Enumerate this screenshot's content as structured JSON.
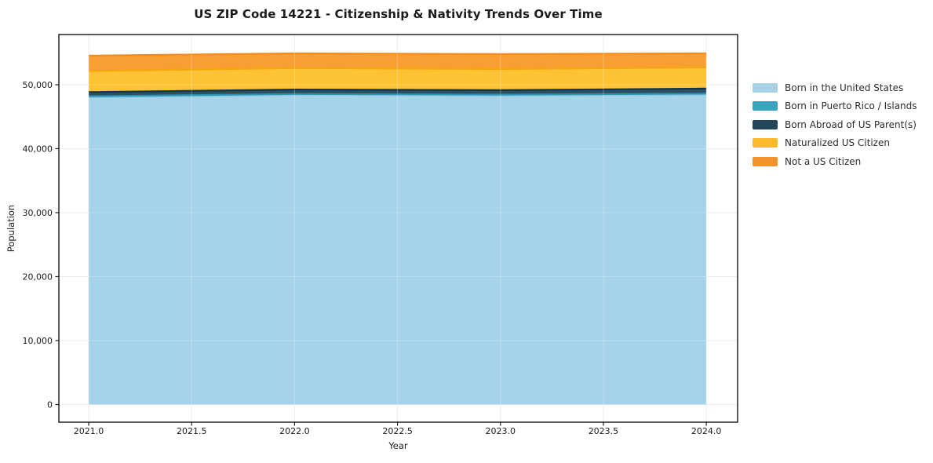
{
  "title": "US ZIP Code 14221 - Citizenship & Nativity Trends Over Time",
  "chart_data": {
    "type": "area",
    "stacked": true,
    "title": "US ZIP Code 14221 - Citizenship & Nativity Trends Over Time",
    "xlabel": "Year",
    "ylabel": "Population",
    "x": [
      2021,
      2022,
      2023,
      2024
    ],
    "series": [
      {
        "name": "Born in the United States",
        "color": "#A6D1E6",
        "fill": "#A5D4EA",
        "line": "#8FC9E3",
        "values": [
          48000,
          48400,
          48300,
          48400
        ]
      },
      {
        "name": "Born in Puerto Rico / Islands",
        "color": "#3BA3C0",
        "fill": "#45A9C6",
        "line": "#2B94B3",
        "values": [
          200,
          150,
          150,
          200
        ]
      },
      {
        "name": "Born Abroad of US Parent(s)",
        "color": "#24465A",
        "fill": "#2C4F63",
        "line": "#123649",
        "values": [
          650,
          700,
          700,
          800
        ]
      },
      {
        "name": "Naturalized US Citizen",
        "color": "#FBBA2D",
        "fill": "#FDC334",
        "line": "#F5A80D",
        "values": [
          3300,
          3350,
          3300,
          3300
        ]
      },
      {
        "name": "Not a US Citizen",
        "color": "#F6922B",
        "fill": "#F89E33",
        "line": "#F58B1D",
        "values": [
          2400,
          2300,
          2350,
          2200
        ]
      }
    ],
    "xticks": [
      {
        "v": 2021.0,
        "label": "2021.0"
      },
      {
        "v": 2021.5,
        "label": "2021.5"
      },
      {
        "v": 2022.0,
        "label": "2022.0"
      },
      {
        "v": 2022.5,
        "label": "2022.5"
      },
      {
        "v": 2023.0,
        "label": "2023.0"
      },
      {
        "v": 2023.5,
        "label": "2023.5"
      },
      {
        "v": 2024.0,
        "label": "2024.0"
      }
    ],
    "yticks": [
      {
        "v": 0,
        "label": "0"
      },
      {
        "v": 10000,
        "label": "10,000"
      },
      {
        "v": 20000,
        "label": "20,000"
      },
      {
        "v": 30000,
        "label": "30,000"
      },
      {
        "v": 40000,
        "label": "40,000"
      },
      {
        "v": 50000,
        "label": "50,000"
      }
    ],
    "xlim": [
      2020.855,
      2024.152
    ],
    "ylim": [
      -2760,
      57850
    ],
    "grid": true,
    "legend_position": "right",
    "grid_color": "#e7e7e7",
    "spine_color": "#000000",
    "tick_color": "#1a1a1a"
  }
}
